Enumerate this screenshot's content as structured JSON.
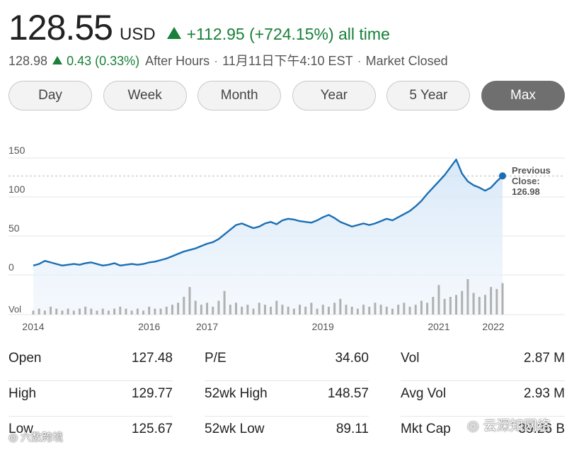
{
  "quote": {
    "price": "128.55",
    "currency": "USD",
    "change": "+112.95 (+724.15%) all time",
    "after_price": "128.98",
    "after_change": "0.43 (0.33%)",
    "after_label": "After Hours",
    "timestamp": "11月11日下午4:10 EST",
    "market_status": "Market Closed",
    "up_color": "#188038"
  },
  "tabs": [
    {
      "label": "Day"
    },
    {
      "label": "Week"
    },
    {
      "label": "Month"
    },
    {
      "label": "Year"
    },
    {
      "label": "5 Year"
    },
    {
      "label": "Max",
      "active": true
    }
  ],
  "chart_data": {
    "type": "line",
    "line_color": "#1a6fb4",
    "ylim": [
      0,
      150
    ],
    "y_ticks": [
      "150",
      "100",
      "50",
      "0"
    ],
    "x_ticks": [
      "2014",
      "2016",
      "2017",
      "2019",
      "2021",
      "2022"
    ],
    "vol_label": "Vol",
    "previous_close_label": "Previous Close:",
    "previous_close": "126.98",
    "x": [
      2014.0,
      2014.1,
      2014.2,
      2014.3,
      2014.4,
      2014.5,
      2014.6,
      2014.7,
      2014.8,
      2014.9,
      2015.0,
      2015.1,
      2015.2,
      2015.3,
      2015.4,
      2015.5,
      2015.6,
      2015.7,
      2015.8,
      2015.9,
      2016.0,
      2016.1,
      2016.2,
      2016.3,
      2016.4,
      2016.5,
      2016.6,
      2016.7,
      2016.8,
      2016.9,
      2017.0,
      2017.1,
      2017.2,
      2017.3,
      2017.4,
      2017.5,
      2017.6,
      2017.7,
      2017.8,
      2017.9,
      2018.0,
      2018.1,
      2018.2,
      2018.3,
      2018.4,
      2018.5,
      2018.6,
      2018.7,
      2018.8,
      2018.9,
      2019.0,
      2019.1,
      2019.2,
      2019.3,
      2019.4,
      2019.5,
      2019.6,
      2019.7,
      2019.8,
      2019.9,
      2020.0,
      2020.1,
      2020.2,
      2020.3,
      2020.4,
      2020.5,
      2020.6,
      2020.7,
      2020.8,
      2020.9,
      2021.0,
      2021.1,
      2021.2,
      2021.3,
      2021.4,
      2021.5,
      2021.6,
      2021.7,
      2021.8,
      2021.9,
      2022.0,
      2022.1
    ],
    "values": [
      12,
      14,
      18,
      16,
      14,
      12,
      13,
      14,
      13,
      15,
      16,
      14,
      12,
      13,
      15,
      12,
      13,
      14,
      13,
      14,
      16,
      17,
      19,
      21,
      24,
      27,
      30,
      32,
      34,
      37,
      40,
      42,
      46,
      52,
      58,
      64,
      66,
      63,
      60,
      62,
      66,
      68,
      65,
      70,
      72,
      71,
      69,
      68,
      67,
      70,
      74,
      77,
      73,
      68,
      65,
      62,
      64,
      66,
      64,
      66,
      69,
      72,
      70,
      74,
      78,
      82,
      88,
      95,
      104,
      112,
      120,
      128,
      138,
      148,
      130,
      120,
      115,
      112,
      108,
      112,
      120,
      127
    ],
    "volume": [
      2,
      3,
      2,
      4,
      3,
      2,
      3,
      2,
      3,
      4,
      3,
      2,
      3,
      2,
      3,
      4,
      3,
      2,
      3,
      2,
      4,
      3,
      3,
      4,
      5,
      6,
      9,
      14,
      7,
      5,
      6,
      4,
      7,
      12,
      5,
      6,
      4,
      5,
      3,
      6,
      5,
      4,
      7,
      5,
      4,
      3,
      5,
      4,
      6,
      3,
      5,
      4,
      6,
      8,
      5,
      4,
      3,
      5,
      4,
      6,
      5,
      4,
      3,
      5,
      6,
      4,
      5,
      7,
      6,
      9,
      15,
      8,
      9,
      10,
      12,
      18,
      11,
      9,
      10,
      14,
      13,
      16
    ]
  },
  "stats": [
    [
      {
        "label": "Open",
        "value": "127.48"
      },
      {
        "label": "High",
        "value": "129.77"
      },
      {
        "label": "Low",
        "value": "125.67"
      }
    ],
    [
      {
        "label": "P/E",
        "value": "34.60"
      },
      {
        "label": "52wk High",
        "value": "148.57"
      },
      {
        "label": "52wk Low",
        "value": "89.11"
      }
    ],
    [
      {
        "label": "Vol",
        "value": "2.87 M"
      },
      {
        "label": "Avg Vol",
        "value": "2.93 M"
      },
      {
        "label": "Mkt Cap",
        "value": "39.26 B"
      }
    ]
  ],
  "watermarks": {
    "left": "六数跨境",
    "right": "云深知网络"
  }
}
